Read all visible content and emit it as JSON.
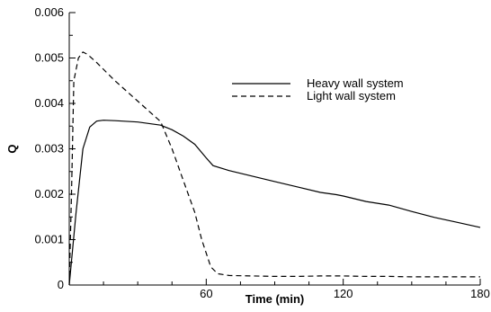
{
  "chart_data": {
    "type": "line",
    "title": "",
    "xlabel": "Time (min)",
    "ylabel": "Q",
    "xlim": [
      0,
      180
    ],
    "ylim": [
      0,
      0.006
    ],
    "x_ticks": [
      60,
      120,
      180
    ],
    "x_tick_labels": [
      "60",
      "120",
      "180"
    ],
    "y_ticks": [
      0,
      0.001,
      0.002,
      0.003,
      0.004,
      0.005,
      0.006
    ],
    "y_tick_labels": [
      "0",
      "0.001",
      "0.002",
      "0.003",
      "0.004",
      "0.005",
      "0.006"
    ],
    "grid": false,
    "legend_position": "upper-right",
    "series": [
      {
        "name": "Heavy wall system",
        "line_style": "solid",
        "color": "#000000",
        "x": [
          0,
          3,
          6,
          9,
          12,
          15,
          20,
          30,
          40,
          45,
          50,
          55,
          60,
          63,
          70,
          80,
          90,
          100,
          110,
          117,
          120,
          130,
          135,
          140,
          150,
          160,
          170,
          180
        ],
        "y": [
          0,
          0.0016,
          0.003,
          0.00348,
          0.00361,
          0.00363,
          0.00362,
          0.00359,
          0.00352,
          0.00342,
          0.00328,
          0.0031,
          0.0028,
          0.00263,
          0.00252,
          0.0024,
          0.00228,
          0.00216,
          0.00204,
          0.00199,
          0.00196,
          0.00184,
          0.0018,
          0.00176,
          0.00162,
          0.00149,
          0.00138,
          0.00127
        ]
      },
      {
        "name": "Light wall system",
        "line_style": "dashed",
        "color": "#000000",
        "x": [
          0,
          1,
          2,
          4,
          6,
          8,
          12,
          20,
          30,
          40,
          45,
          50,
          55,
          58,
          62,
          65,
          70,
          80,
          90,
          100,
          110,
          120,
          130,
          140,
          150,
          160,
          170,
          180
        ],
        "y": [
          0,
          0.002,
          0.0045,
          0.005,
          0.00513,
          0.00508,
          0.0049,
          0.0045,
          0.00405,
          0.0036,
          0.003,
          0.0023,
          0.0016,
          0.001,
          0.0004,
          0.00025,
          0.00021,
          0.0002,
          0.00019,
          0.00019,
          0.0002,
          0.0002,
          0.00019,
          0.00019,
          0.00018,
          0.00018,
          0.00018,
          0.00018
        ]
      }
    ]
  }
}
